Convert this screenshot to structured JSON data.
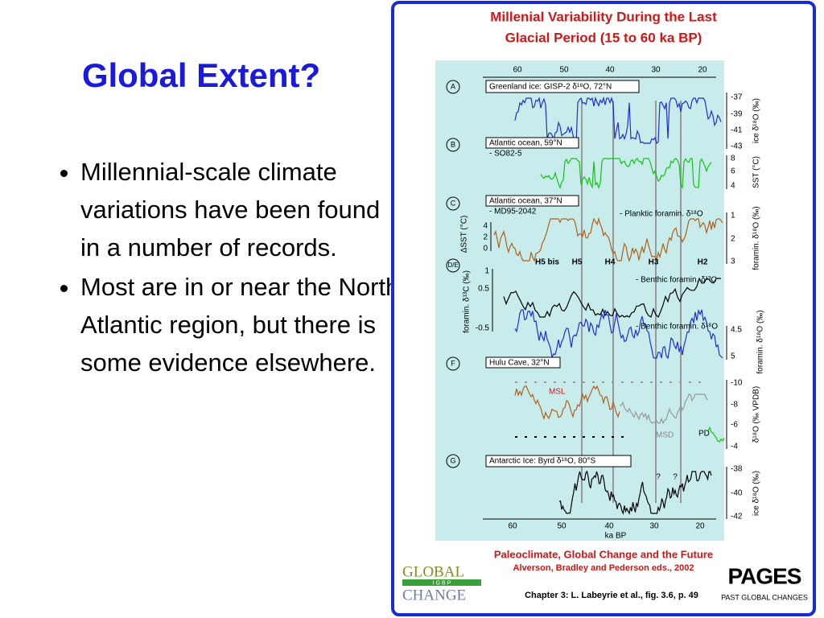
{
  "slide": {
    "title": "Global Extent?",
    "bullets": [
      "Millennial-scale climate variations have been found in a number of records.",
      "Most are in or near the North Atlantic region, but there is some evidence elsewhere."
    ]
  },
  "figure": {
    "title_lines": [
      "Millenial Variability During the Last",
      "Glacial Period (15 to 60 ka BP)"
    ],
    "top_ticks": [
      "60",
      "50",
      "40",
      "30",
      "20"
    ],
    "bottom_ticks": [
      "60",
      "50",
      "40",
      "30",
      "20"
    ],
    "xlabel": "ka BP",
    "heinrich": [
      "H5 bis",
      "H5",
      "H4",
      "H3",
      "H2"
    ],
    "panels": [
      {
        "letter": "A",
        "texts": [
          "Greenland ice: GISP-2 δ¹⁸O, 72°N"
        ],
        "right_ticks": [
          "-37",
          "-39",
          "-41",
          "-43"
        ],
        "right_label": "ice δ¹⁸O (‰)"
      },
      {
        "letter": "B",
        "texts": [
          "Atlantic ocean, 59°N",
          "- SO82-5"
        ],
        "right_ticks": [
          "8",
          "6",
          "4"
        ],
        "right_label": "SST (°C)"
      },
      {
        "letter": "C",
        "texts": [
          "Atlantic ocean, 37°N",
          "- MD95-2042",
          "- Planktic foramin. δ¹⁸O"
        ],
        "right_ticks": [
          "1",
          "2",
          "3"
        ],
        "right_label": "foramin. δ¹⁸O (‰)",
        "left_ticks": [
          "4",
          "2",
          "0"
        ],
        "left_label": "ΔSST (°C)"
      },
      {
        "letter": "D/E",
        "texts": [
          "- Benthic foramin. δ¹³C",
          "- Benthic foramin. δ¹⁸O"
        ],
        "left_ticks": [
          "1",
          "0.5",
          "-0.5"
        ],
        "left_label": "foramin. δ¹³C (‰)",
        "right_ticks": [
          "4.5",
          "5"
        ],
        "right_label": "foramin. δ¹⁸O (‰)"
      },
      {
        "letter": "F",
        "texts": [
          "Hulu Cave, 32°N",
          "MSL",
          "MSD",
          "PD"
        ],
        "right_ticks": [
          "-10",
          "-8",
          "-6",
          "-4"
        ],
        "right_label": "δ¹⁸O (‰ VPDB)"
      },
      {
        "letter": "G",
        "texts": [
          "Antarctic Ice: Byrd δ¹⁸O, 80°S",
          "?",
          "?"
        ],
        "right_ticks": [
          "-38",
          "-40",
          "-42"
        ],
        "right_label": "ice δ¹⁸O (‰)"
      }
    ]
  },
  "footer": {
    "book": "Paleoclimate, Global Change and the Future",
    "editors": "Alverson, Bradley and Pederson eds., 2002",
    "chapter": "Chapter 3: L. Labeyrie et al., fig. 3.6, p. 49",
    "logo_left": [
      "GLOBAL",
      "I G B P",
      "CHANGE"
    ],
    "logo_right": [
      "PAGES",
      "PAST GLOBAL CHANGES"
    ]
  }
}
